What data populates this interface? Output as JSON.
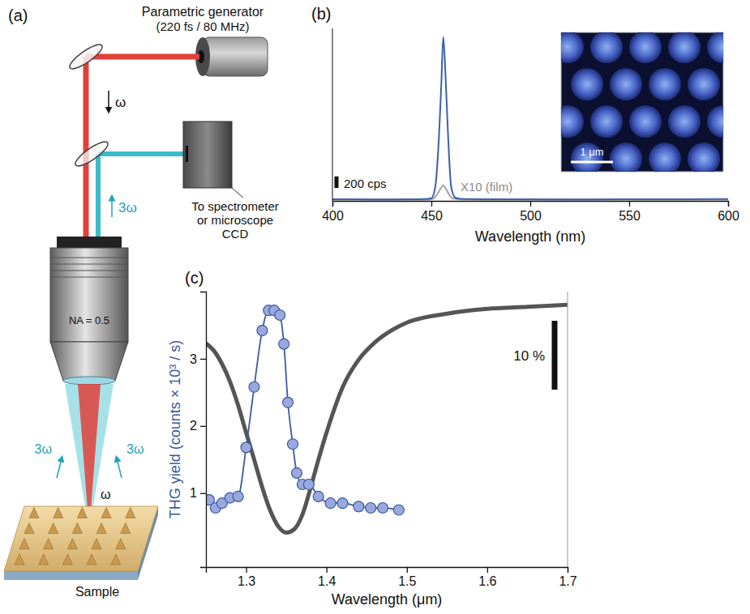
{
  "diagram": {
    "panel_label": "(a)",
    "source_label": [
      "Parametric generator",
      "(220 fs / 80 MHz)"
    ],
    "fundamental_label": "ω",
    "harmonic_label": "3ω",
    "detector_label": [
      "To spectrometer",
      "or microscope",
      "CCD"
    ],
    "objective_label": "NA = 0.5",
    "focus_labels": [
      "3ω",
      "3ω"
    ],
    "focus_fundamental_label": "ω",
    "sample_label": "Sample"
  },
  "chart_data": [
    {
      "type": "line",
      "panel_label": "(b)",
      "xlabel": "Wavelength (nm)",
      "xlim": [
        400,
        600
      ],
      "xticks": [
        400,
        450,
        500,
        550,
        600
      ],
      "ylim": [
        0,
        3000
      ],
      "tick_labels": "x",
      "scale_bar": {
        "value": 200,
        "label": "200 cps"
      },
      "inset": {
        "scale_bar_label": "1 μm"
      },
      "series": [
        {
          "color": "#3a62a8",
          "x": [
            400,
            420,
            440,
            446,
            450,
            452,
            453.5,
            455,
            456,
            457,
            458.5,
            460,
            462,
            465,
            470,
            490,
            520,
            550,
            580,
            600
          ],
          "values": [
            28,
            26,
            27,
            30,
            45,
            250,
            900,
            2000,
            2850,
            2300,
            1100,
            250,
            60,
            35,
            30,
            27,
            26,
            27,
            29,
            32
          ]
        },
        {
          "name": "X10 (film)",
          "color": "#a8a8a8",
          "x": [
            400,
            430,
            448,
            451,
            453,
            455,
            456,
            457,
            459,
            461,
            465,
            490,
            540,
            600
          ],
          "values": [
            22,
            22,
            24,
            40,
            120,
            230,
            275,
            230,
            110,
            40,
            25,
            22,
            22,
            22
          ]
        }
      ]
    },
    {
      "type": "line",
      "panel_label": "(c)",
      "xlabel": "Wavelength (μm)",
      "ylabel": "THG yield (counts × 10³ / s)",
      "xlim": [
        1.25,
        1.7
      ],
      "xticks": [
        1.3,
        1.4,
        1.5,
        1.6,
        1.7
      ],
      "ylim": [
        -0.1,
        4
      ],
      "yticks": [
        1,
        2,
        3
      ],
      "y2lim": [
        0,
        40
      ],
      "scale_bar": {
        "value": 10,
        "label": "10 %"
      },
      "series": [
        {
          "color": "#3a5ba0",
          "marker": "circle",
          "line_style": "solid",
          "x": [
            1.254,
            1.262,
            1.27,
            1.28,
            1.29,
            1.3,
            1.31,
            1.32,
            1.328,
            1.335,
            1.342,
            1.347,
            1.352,
            1.358,
            1.363,
            1.37,
            1.378,
            1.39,
            1.405,
            1.42,
            1.44,
            1.455,
            1.47,
            1.49
          ],
          "values": [
            0.9,
            0.78,
            0.85,
            0.93,
            0.95,
            1.68,
            2.58,
            3.42,
            3.72,
            3.72,
            3.65,
            3.22,
            2.35,
            1.73,
            1.3,
            1.13,
            1.13,
            0.95,
            0.85,
            0.85,
            0.8,
            0.78,
            0.78,
            0.75
          ]
        },
        {
          "color": "#555555",
          "marker": "none",
          "line_style": "solid",
          "axis": "y2",
          "x": [
            1.25,
            1.26,
            1.27,
            1.28,
            1.29,
            1.3,
            1.31,
            1.32,
            1.33,
            1.34,
            1.35,
            1.36,
            1.37,
            1.38,
            1.39,
            1.4,
            1.42,
            1.44,
            1.46,
            1.48,
            1.5,
            1.55,
            1.6,
            1.65,
            1.7
          ],
          "values": [
            32.5,
            31.4,
            29.5,
            26.9,
            23.5,
            19.5,
            15.6,
            11.6,
            8.2,
            5.9,
            5.0,
            5.5,
            7.6,
            11.4,
            15.6,
            19.5,
            26.1,
            30.1,
            32.6,
            34.3,
            35.5,
            36.8,
            37.5,
            37.8,
            38.1
          ]
        }
      ]
    }
  ]
}
